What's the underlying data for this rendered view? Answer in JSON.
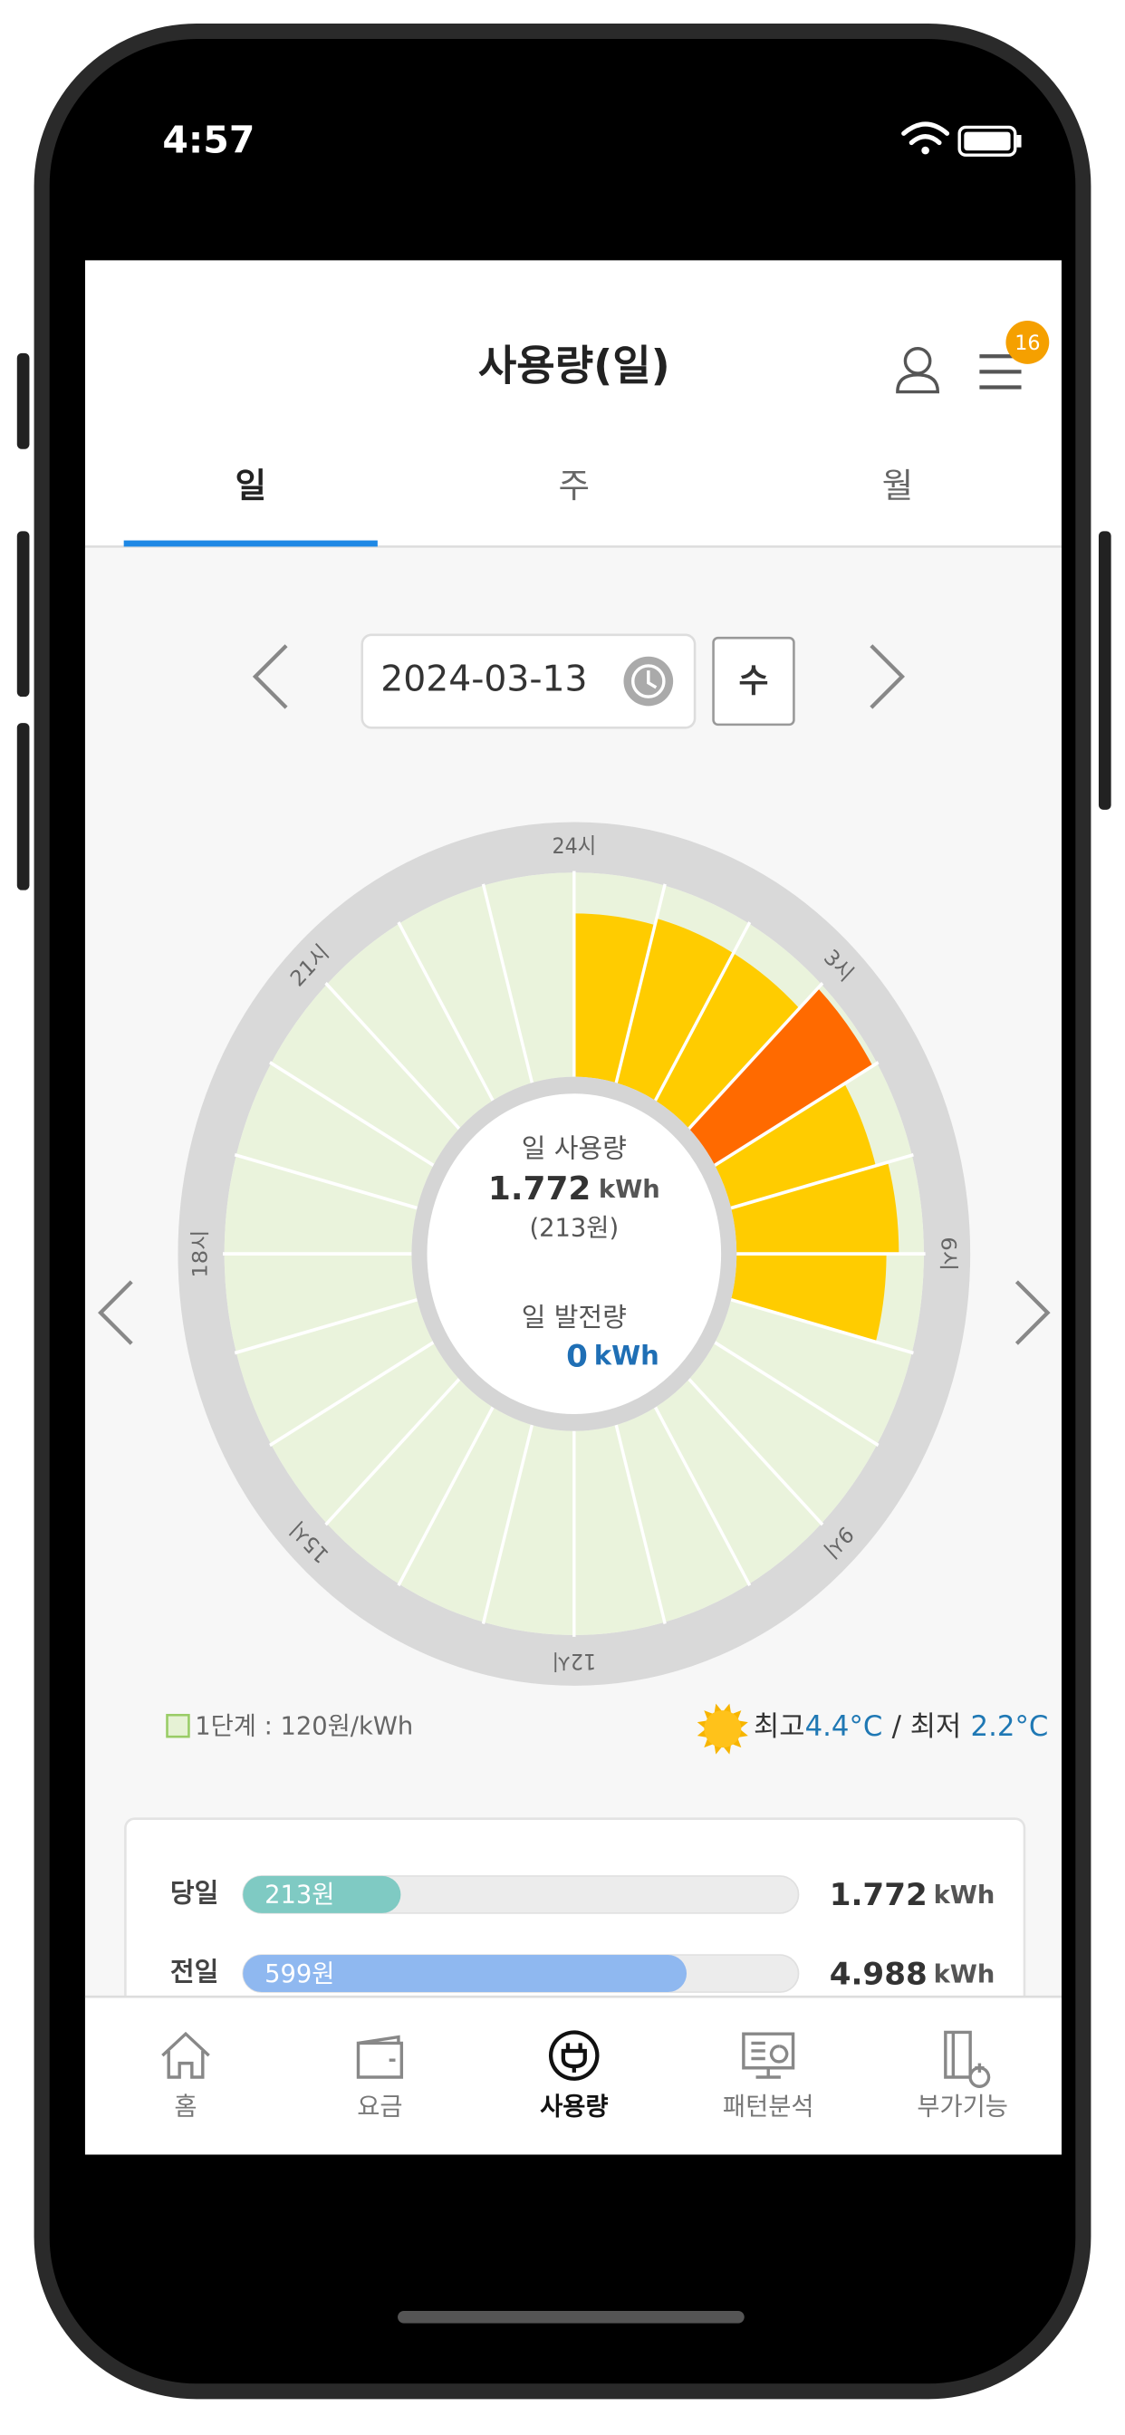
{
  "status_bar": {
    "time": "4:57"
  },
  "header": {
    "title": "사용량(일)",
    "badge": "16"
  },
  "tabs": {
    "items": [
      "일",
      "주",
      "월"
    ],
    "selected": 0
  },
  "date_nav": {
    "date": "2024-03-13",
    "weekday": "수"
  },
  "chart_data": {
    "type": "radial-bar",
    "tick_labels": [
      "24시",
      "3시",
      "6시",
      "9시",
      "12시",
      "15시",
      "18시",
      "21시"
    ],
    "values": [
      0.24,
      0.25,
      0.25,
      0.292,
      0.24,
      0.26,
      0.24,
      0,
      0,
      0,
      0,
      0,
      0,
      0,
      0,
      0,
      0,
      0,
      0,
      0,
      0,
      0,
      0,
      0
    ],
    "ylim": [
      0,
      0.3
    ],
    "color": "#ffcc00",
    "highlight_color": "#ff6a00"
  },
  "summary": {
    "usage_label": "일 사용량",
    "usage_value": 1.772,
    "unit": "kWh",
    "cost": "(213원)",
    "generation_label": "일 발전량",
    "generation_value": 0
  },
  "legend": {
    "tier": "1단계 : 120원/kWh"
  },
  "weather": {
    "high_label": "최고",
    "high": "4.4°C",
    "low_label": "/ 최저",
    "low": "2.2°C"
  },
  "comparison": {
    "xlim": [
      0,
      750
    ],
    "unit": "kWh",
    "rows": [
      {
        "label": "당일",
        "cost": 213,
        "cost_label": "213원",
        "usage": 1.772,
        "color": "#7fcac3"
      },
      {
        "label": "전일",
        "cost": 599,
        "cost_label": "599원",
        "usage": 4.988,
        "color": "#8fb8f0"
      }
    ]
  },
  "nav": {
    "items": [
      "홈",
      "요금",
      "사용량",
      "패턴분석",
      "부가기능"
    ],
    "selected": 2
  }
}
